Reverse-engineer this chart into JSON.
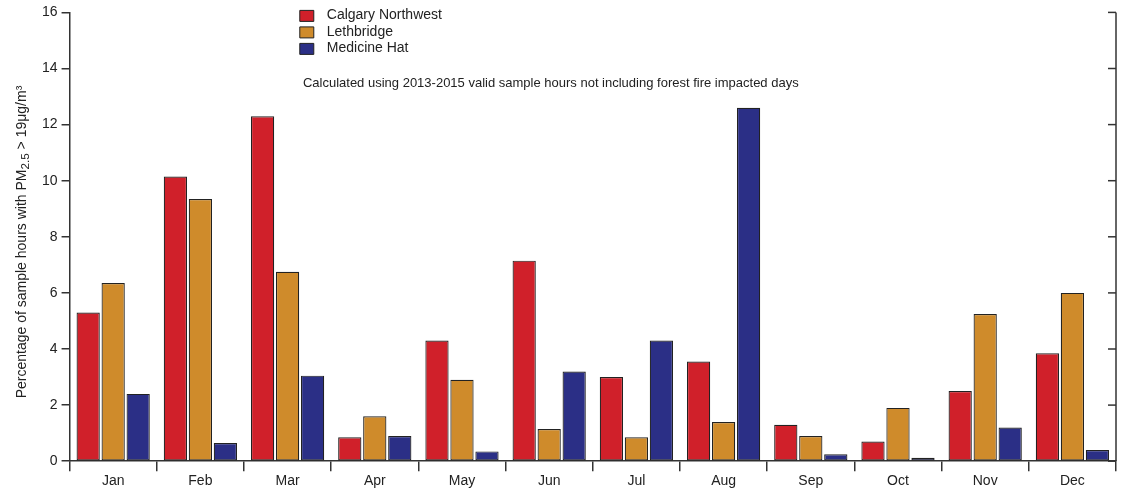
{
  "chart_data": {
    "type": "bar",
    "ylabel": "Percentage of sample hours with PM$_{2.5}$ > 19μg/m³",
    "annotations": [
      "Calculated using 2013-2015 valid sample hours not including forest fire impacted days"
    ],
    "categories": [
      "Jan",
      "Feb",
      "Mar",
      "Apr",
      "May",
      "Jun",
      "Jul",
      "Aug",
      "Sep",
      "Oct",
      "Nov",
      "Dec"
    ],
    "series": [
      {
        "name": "Calgary Northwest",
        "color": "#d0202a",
        "values": [
          5.3,
          10.15,
          12.3,
          0.85,
          4.3,
          7.15,
          3.0,
          3.55,
          1.3,
          0.7,
          2.5,
          3.85
        ]
      },
      {
        "name": "Lethbridge",
        "color": "#cf8b2b",
        "values": [
          6.35,
          9.35,
          6.75,
          1.6,
          2.9,
          1.15,
          0.85,
          1.4,
          0.9,
          1.9,
          5.25,
          6.0
        ]
      },
      {
        "name": "Medicine Hat",
        "color": "#2b2f86",
        "values": [
          2.4,
          0.65,
          3.05,
          0.9,
          0.35,
          3.2,
          4.3,
          12.6,
          0.25,
          0.12,
          1.2,
          0.4
        ]
      }
    ],
    "ylim": [
      0,
      16
    ],
    "yticks": [
      0,
      2,
      4,
      6,
      8,
      10,
      12,
      14,
      16
    ],
    "grid": false,
    "legend": "top"
  }
}
